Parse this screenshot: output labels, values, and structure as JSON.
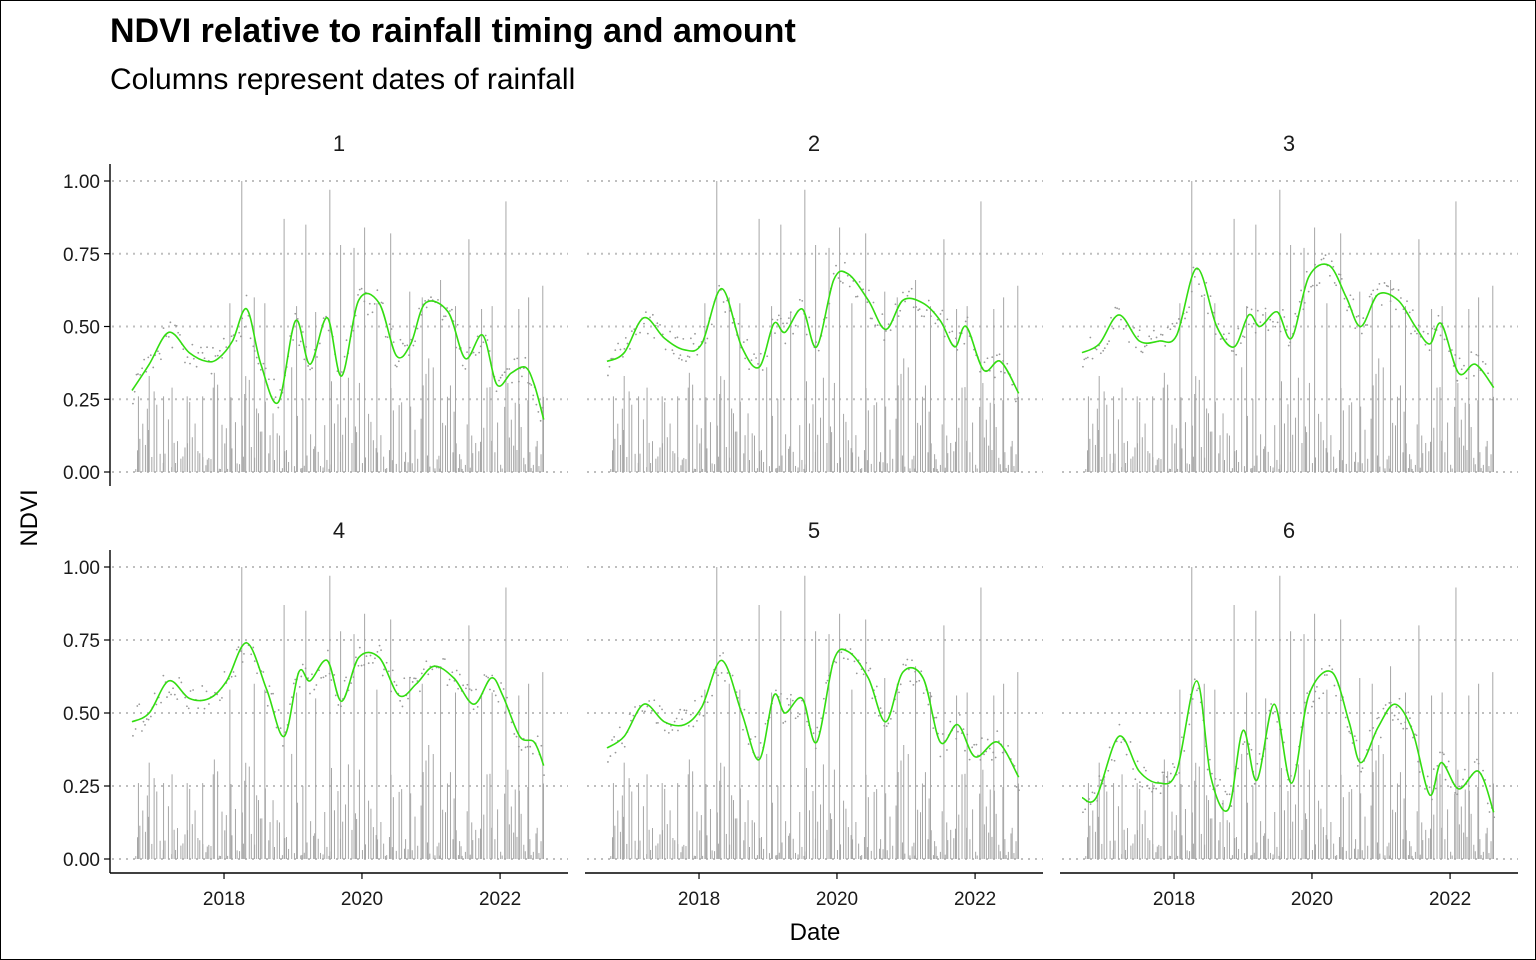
{
  "chart_data": {
    "type": "bar+line",
    "title": "NDVI relative to rainfall timing and amount",
    "subtitle": "Columns represent dates of rainfall",
    "xlabel": "Date",
    "ylabel": "NDVI",
    "x_range": [
      "2016-09-01",
      "2022-09-01"
    ],
    "ylim": [
      0,
      1
    ],
    "y_ticks": [
      "0.00",
      "0.25",
      "0.50",
      "0.75",
      "1.00"
    ],
    "x_ticks": [
      {
        "date": "2018-01-01",
        "label": "2018"
      },
      {
        "date": "2020-01-01",
        "label": "2020"
      },
      {
        "date": "2022-01-01",
        "label": "2022"
      }
    ],
    "grid": "horizontal dotted",
    "colors": {
      "smooth_line": "#33dd11",
      "rain_columns": "#a6a6a6",
      "points": "#999999",
      "grid": "#bfbfbf"
    },
    "rainfall_columns": [
      {
        "date": "2016-10-05",
        "value": 0.26
      },
      {
        "date": "2016-12-01",
        "value": 0.33
      },
      {
        "date": "2017-02-15",
        "value": 0.26
      },
      {
        "date": "2017-04-01",
        "value": 0.29
      },
      {
        "date": "2017-06-20",
        "value": 0.26
      },
      {
        "date": "2017-09-10",
        "value": 0.26
      },
      {
        "date": "2017-11-05",
        "value": 0.29
      },
      {
        "date": "2018-02-01",
        "value": 0.58
      },
      {
        "date": "2018-04-05",
        "value": 1.0
      },
      {
        "date": "2018-06-10",
        "value": 0.6
      },
      {
        "date": "2018-08-05",
        "value": 0.58
      },
      {
        "date": "2018-11-15",
        "value": 0.87
      },
      {
        "date": "2019-01-20",
        "value": 0.57
      },
      {
        "date": "2019-03-10",
        "value": 0.85
      },
      {
        "date": "2019-05-01",
        "value": 0.55
      },
      {
        "date": "2019-07-15",
        "value": 0.97
      },
      {
        "date": "2019-09-10",
        "value": 0.78
      },
      {
        "date": "2019-11-20",
        "value": 0.77
      },
      {
        "date": "2020-01-15",
        "value": 0.84
      },
      {
        "date": "2020-03-20",
        "value": 0.58
      },
      {
        "date": "2020-06-01",
        "value": 0.82
      },
      {
        "date": "2020-09-10",
        "value": 0.62
      },
      {
        "date": "2020-11-15",
        "value": 0.6
      },
      {
        "date": "2021-02-20",
        "value": 0.66
      },
      {
        "date": "2021-05-10",
        "value": 0.57
      },
      {
        "date": "2021-07-20",
        "value": 0.8
      },
      {
        "date": "2021-09-25",
        "value": 0.56
      },
      {
        "date": "2021-11-20",
        "value": 0.57
      },
      {
        "date": "2022-02-01",
        "value": 0.93
      },
      {
        "date": "2022-04-10",
        "value": 0.56
      },
      {
        "date": "2022-06-01",
        "value": 0.6
      },
      {
        "date": "2022-08-15",
        "value": 0.64
      }
    ],
    "panels": [
      {
        "strip": "1",
        "ndvi_smooth": [
          {
            "date": "2016-09-01",
            "ndvi": 0.28
          },
          {
            "date": "2016-12-01",
            "ndvi": 0.37
          },
          {
            "date": "2017-03-15",
            "ndvi": 0.48
          },
          {
            "date": "2017-07-01",
            "ndvi": 0.41
          },
          {
            "date": "2017-10-01",
            "ndvi": 0.38
          },
          {
            "date": "2017-12-01",
            "ndvi": 0.39
          },
          {
            "date": "2018-02-15",
            "ndvi": 0.45
          },
          {
            "date": "2018-05-01",
            "ndvi": 0.56
          },
          {
            "date": "2018-07-15",
            "ndvi": 0.37
          },
          {
            "date": "2018-10-15",
            "ndvi": 0.24
          },
          {
            "date": "2019-01-15",
            "ndvi": 0.52
          },
          {
            "date": "2019-04-01",
            "ndvi": 0.37
          },
          {
            "date": "2019-07-01",
            "ndvi": 0.53
          },
          {
            "date": "2019-09-15",
            "ndvi": 0.33
          },
          {
            "date": "2019-12-15",
            "ndvi": 0.59
          },
          {
            "date": "2020-04-01",
            "ndvi": 0.58
          },
          {
            "date": "2020-07-01",
            "ndvi": 0.4
          },
          {
            "date": "2020-09-15",
            "ndvi": 0.44
          },
          {
            "date": "2020-12-01",
            "ndvi": 0.58
          },
          {
            "date": "2021-04-01",
            "ndvi": 0.55
          },
          {
            "date": "2021-07-01",
            "ndvi": 0.39
          },
          {
            "date": "2021-10-01",
            "ndvi": 0.47
          },
          {
            "date": "2021-12-15",
            "ndvi": 0.3
          },
          {
            "date": "2022-03-01",
            "ndvi": 0.34
          },
          {
            "date": "2022-05-15",
            "ndvi": 0.36
          },
          {
            "date": "2022-07-01",
            "ndvi": 0.3
          },
          {
            "date": "2022-08-20",
            "ndvi": 0.18
          }
        ]
      },
      {
        "strip": "2",
        "ndvi_smooth": [
          {
            "date": "2016-09-01",
            "ndvi": 0.38
          },
          {
            "date": "2016-12-01",
            "ndvi": 0.41
          },
          {
            "date": "2017-03-15",
            "ndvi": 0.53
          },
          {
            "date": "2017-07-01",
            "ndvi": 0.46
          },
          {
            "date": "2017-10-15",
            "ndvi": 0.42
          },
          {
            "date": "2018-01-15",
            "ndvi": 0.44
          },
          {
            "date": "2018-05-01",
            "ndvi": 0.63
          },
          {
            "date": "2018-08-15",
            "ndvi": 0.43
          },
          {
            "date": "2018-11-15",
            "ndvi": 0.36
          },
          {
            "date": "2019-02-01",
            "ndvi": 0.51
          },
          {
            "date": "2019-04-01",
            "ndvi": 0.48
          },
          {
            "date": "2019-07-01",
            "ndvi": 0.56
          },
          {
            "date": "2019-09-15",
            "ndvi": 0.43
          },
          {
            "date": "2019-12-15",
            "ndvi": 0.66
          },
          {
            "date": "2020-03-01",
            "ndvi": 0.68
          },
          {
            "date": "2020-06-15",
            "ndvi": 0.59
          },
          {
            "date": "2020-09-15",
            "ndvi": 0.49
          },
          {
            "date": "2020-12-15",
            "ndvi": 0.59
          },
          {
            "date": "2021-04-01",
            "ndvi": 0.58
          },
          {
            "date": "2021-07-01",
            "ndvi": 0.52
          },
          {
            "date": "2021-09-15",
            "ndvi": 0.43
          },
          {
            "date": "2021-11-15",
            "ndvi": 0.5
          },
          {
            "date": "2022-02-15",
            "ndvi": 0.35
          },
          {
            "date": "2022-05-15",
            "ndvi": 0.38
          },
          {
            "date": "2022-08-20",
            "ndvi": 0.27
          }
        ]
      },
      {
        "strip": "3",
        "ndvi_smooth": [
          {
            "date": "2016-09-01",
            "ndvi": 0.41
          },
          {
            "date": "2016-12-01",
            "ndvi": 0.44
          },
          {
            "date": "2017-03-15",
            "ndvi": 0.54
          },
          {
            "date": "2017-07-01",
            "ndvi": 0.45
          },
          {
            "date": "2017-10-15",
            "ndvi": 0.45
          },
          {
            "date": "2018-01-15",
            "ndvi": 0.47
          },
          {
            "date": "2018-05-01",
            "ndvi": 0.7
          },
          {
            "date": "2018-08-15",
            "ndvi": 0.5
          },
          {
            "date": "2018-11-15",
            "ndvi": 0.43
          },
          {
            "date": "2019-02-01",
            "ndvi": 0.54
          },
          {
            "date": "2019-04-01",
            "ndvi": 0.5
          },
          {
            "date": "2019-07-01",
            "ndvi": 0.55
          },
          {
            "date": "2019-09-15",
            "ndvi": 0.46
          },
          {
            "date": "2019-12-15",
            "ndvi": 0.67
          },
          {
            "date": "2020-04-01",
            "ndvi": 0.71
          },
          {
            "date": "2020-07-01",
            "ndvi": 0.6
          },
          {
            "date": "2020-09-15",
            "ndvi": 0.5
          },
          {
            "date": "2020-12-15",
            "ndvi": 0.61
          },
          {
            "date": "2021-04-01",
            "ndvi": 0.59
          },
          {
            "date": "2021-07-01",
            "ndvi": 0.5
          },
          {
            "date": "2021-09-15",
            "ndvi": 0.44
          },
          {
            "date": "2021-11-15",
            "ndvi": 0.51
          },
          {
            "date": "2022-02-15",
            "ndvi": 0.34
          },
          {
            "date": "2022-05-15",
            "ndvi": 0.37
          },
          {
            "date": "2022-08-20",
            "ndvi": 0.29
          }
        ]
      },
      {
        "strip": "4",
        "ndvi_smooth": [
          {
            "date": "2016-09-01",
            "ndvi": 0.47
          },
          {
            "date": "2016-12-01",
            "ndvi": 0.5
          },
          {
            "date": "2017-03-15",
            "ndvi": 0.61
          },
          {
            "date": "2017-07-01",
            "ndvi": 0.55
          },
          {
            "date": "2017-10-15",
            "ndvi": 0.55
          },
          {
            "date": "2018-01-15",
            "ndvi": 0.61
          },
          {
            "date": "2018-05-01",
            "ndvi": 0.74
          },
          {
            "date": "2018-08-15",
            "ndvi": 0.58
          },
          {
            "date": "2018-11-15",
            "ndvi": 0.42
          },
          {
            "date": "2019-02-01",
            "ndvi": 0.64
          },
          {
            "date": "2019-04-01",
            "ndvi": 0.61
          },
          {
            "date": "2019-07-01",
            "ndvi": 0.68
          },
          {
            "date": "2019-09-15",
            "ndvi": 0.54
          },
          {
            "date": "2019-12-15",
            "ndvi": 0.69
          },
          {
            "date": "2020-04-01",
            "ndvi": 0.69
          },
          {
            "date": "2020-07-15",
            "ndvi": 0.56
          },
          {
            "date": "2020-10-15",
            "ndvi": 0.6
          },
          {
            "date": "2021-01-15",
            "ndvi": 0.66
          },
          {
            "date": "2021-05-01",
            "ndvi": 0.62
          },
          {
            "date": "2021-08-15",
            "ndvi": 0.53
          },
          {
            "date": "2021-11-15",
            "ndvi": 0.62
          },
          {
            "date": "2022-01-15",
            "ndvi": 0.56
          },
          {
            "date": "2022-04-15",
            "ndvi": 0.42
          },
          {
            "date": "2022-07-01",
            "ndvi": 0.4
          },
          {
            "date": "2022-08-20",
            "ndvi": 0.32
          }
        ]
      },
      {
        "strip": "5",
        "ndvi_smooth": [
          {
            "date": "2016-09-01",
            "ndvi": 0.38
          },
          {
            "date": "2016-12-01",
            "ndvi": 0.42
          },
          {
            "date": "2017-03-15",
            "ndvi": 0.53
          },
          {
            "date": "2017-07-01",
            "ndvi": 0.47
          },
          {
            "date": "2017-10-15",
            "ndvi": 0.46
          },
          {
            "date": "2018-01-15",
            "ndvi": 0.52
          },
          {
            "date": "2018-05-01",
            "ndvi": 0.68
          },
          {
            "date": "2018-08-15",
            "ndvi": 0.5
          },
          {
            "date": "2018-11-15",
            "ndvi": 0.34
          },
          {
            "date": "2019-02-01",
            "ndvi": 0.56
          },
          {
            "date": "2019-04-01",
            "ndvi": 0.5
          },
          {
            "date": "2019-07-01",
            "ndvi": 0.55
          },
          {
            "date": "2019-09-15",
            "ndvi": 0.4
          },
          {
            "date": "2019-12-15",
            "ndvi": 0.68
          },
          {
            "date": "2020-03-01",
            "ndvi": 0.71
          },
          {
            "date": "2020-06-15",
            "ndvi": 0.62
          },
          {
            "date": "2020-09-15",
            "ndvi": 0.47
          },
          {
            "date": "2020-12-15",
            "ndvi": 0.64
          },
          {
            "date": "2021-04-01",
            "ndvi": 0.62
          },
          {
            "date": "2021-07-01",
            "ndvi": 0.4
          },
          {
            "date": "2021-10-01",
            "ndvi": 0.46
          },
          {
            "date": "2022-01-01",
            "ndvi": 0.35
          },
          {
            "date": "2022-05-01",
            "ndvi": 0.4
          },
          {
            "date": "2022-08-20",
            "ndvi": 0.28
          }
        ]
      },
      {
        "strip": "6",
        "ndvi_smooth": [
          {
            "date": "2016-09-01",
            "ndvi": 0.21
          },
          {
            "date": "2016-11-15",
            "ndvi": 0.21
          },
          {
            "date": "2017-03-15",
            "ndvi": 0.42
          },
          {
            "date": "2017-07-01",
            "ndvi": 0.3
          },
          {
            "date": "2017-10-15",
            "ndvi": 0.26
          },
          {
            "date": "2018-01-15",
            "ndvi": 0.3
          },
          {
            "date": "2018-05-01",
            "ndvi": 0.61
          },
          {
            "date": "2018-07-15",
            "ndvi": 0.28
          },
          {
            "date": "2018-10-15",
            "ndvi": 0.17
          },
          {
            "date": "2019-01-01",
            "ndvi": 0.44
          },
          {
            "date": "2019-03-15",
            "ndvi": 0.27
          },
          {
            "date": "2019-06-15",
            "ndvi": 0.53
          },
          {
            "date": "2019-09-15",
            "ndvi": 0.26
          },
          {
            "date": "2019-12-15",
            "ndvi": 0.56
          },
          {
            "date": "2020-04-15",
            "ndvi": 0.64
          },
          {
            "date": "2020-07-15",
            "ndvi": 0.47
          },
          {
            "date": "2020-09-15",
            "ndvi": 0.33
          },
          {
            "date": "2020-12-15",
            "ndvi": 0.45
          },
          {
            "date": "2021-03-15",
            "ndvi": 0.53
          },
          {
            "date": "2021-06-15",
            "ndvi": 0.44
          },
          {
            "date": "2021-09-15",
            "ndvi": 0.22
          },
          {
            "date": "2021-11-15",
            "ndvi": 0.33
          },
          {
            "date": "2022-02-15",
            "ndvi": 0.24
          },
          {
            "date": "2022-06-01",
            "ndvi": 0.3
          },
          {
            "date": "2022-08-20",
            "ndvi": 0.16
          }
        ]
      }
    ]
  }
}
